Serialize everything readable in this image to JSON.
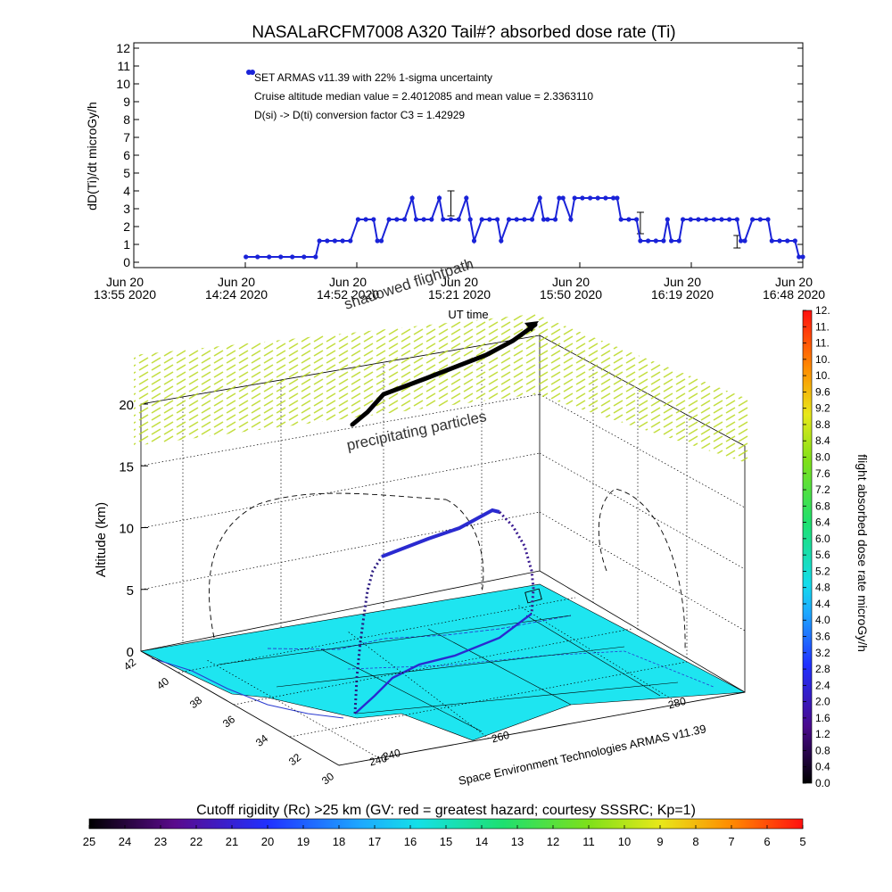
{
  "title": "NASALaRCFM7008  A320 Tail#? absorbed dose rate (Ti)",
  "footer_credit": "Space Environment Technologies ARMAS v11.39",
  "colors": {
    "series": "#1a23d8",
    "rigidity_fill": "#1ee5f0",
    "flight_path": "#2a2ad0",
    "precip": "#a6d81e"
  },
  "chart_data": [
    {
      "id": "dose_rate_timeseries",
      "type": "scatter",
      "ylabel": "dD(Ti)/dt microGy/h",
      "xlabel": "UT time",
      "ylim": [
        0,
        12
      ],
      "ytick_labels": [
        "0",
        "1",
        "2",
        "3",
        "4",
        "5",
        "6",
        "7",
        "8",
        "9",
        "10",
        "11",
        "12"
      ],
      "xlim_minutes": [
        0,
        173
      ],
      "xtick_labels": [
        {
          "line1": "Jun 20",
          "line2": "13:55 2020"
        },
        {
          "line1": "Jun 20",
          "line2": "14:24 2020"
        },
        {
          "line1": "Jun 20",
          "line2": "14:52 2020"
        },
        {
          "line1": "Jun 20",
          "line2": "15:21 2020"
        },
        {
          "line1": "Jun 20",
          "line2": "15:50 2020"
        },
        {
          "line1": "Jun 20",
          "line2": "16:19 2020"
        },
        {
          "line1": "Jun 20",
          "line2": "16:48 2020"
        }
      ],
      "annotations": [
        "SET ARMAS v11.39 with 22% 1-sigma uncertainty",
        "Cruise altitude median value = 2.4012085 and mean value = 2.3363110",
        "D(si) -> D(ti) conversion factor C3 = 1.42929"
      ],
      "series": [
        {
          "values_minutes": [
            [
              29,
              0.3
            ],
            [
              32,
              0.3
            ],
            [
              35,
              0.3
            ],
            [
              38,
              0.3
            ],
            [
              41,
              0.3
            ],
            [
              44,
              0.3
            ],
            [
              47,
              0.3
            ],
            [
              48,
              1.2
            ],
            [
              50,
              1.2
            ],
            [
              52,
              1.2
            ],
            [
              54,
              1.2
            ],
            [
              56,
              1.2
            ],
            [
              58,
              2.4
            ],
            [
              60,
              2.4
            ],
            [
              62,
              2.4
            ],
            [
              63,
              1.2
            ],
            [
              64,
              1.2
            ],
            [
              66,
              2.4
            ],
            [
              68,
              2.4
            ],
            [
              70,
              2.4
            ],
            [
              72,
              3.6
            ],
            [
              73,
              2.4
            ],
            [
              75,
              2.4
            ],
            [
              77,
              2.4
            ],
            [
              79,
              3.6
            ],
            [
              80,
              2.4
            ],
            [
              82,
              2.4
            ],
            [
              84,
              2.4
            ],
            [
              86,
              3.6
            ],
            [
              87,
              2.4
            ],
            [
              88,
              1.2
            ],
            [
              90,
              2.4
            ],
            [
              92,
              2.4
            ],
            [
              94,
              2.4
            ],
            [
              95,
              1.2
            ],
            [
              97,
              2.4
            ],
            [
              99,
              2.4
            ],
            [
              101,
              2.4
            ],
            [
              103,
              2.4
            ],
            [
              105,
              3.6
            ],
            [
              106,
              2.4
            ],
            [
              107,
              2.4
            ],
            [
              109,
              2.4
            ],
            [
              110,
              3.6
            ],
            [
              111,
              3.6
            ],
            [
              113,
              2.4
            ],
            [
              114,
              3.6
            ],
            [
              116,
              3.6
            ],
            [
              118,
              3.6
            ],
            [
              120,
              3.6
            ],
            [
              122,
              3.6
            ],
            [
              124,
              3.6
            ],
            [
              125,
              3.6
            ],
            [
              126,
              2.4
            ],
            [
              128,
              2.4
            ],
            [
              130,
              2.4
            ],
            [
              131,
              1.2
            ],
            [
              133,
              1.2
            ],
            [
              135,
              1.2
            ],
            [
              137,
              1.2
            ],
            [
              138,
              2.4
            ],
            [
              139,
              1.2
            ],
            [
              141,
              1.2
            ],
            [
              142,
              2.4
            ],
            [
              144,
              2.4
            ],
            [
              146,
              2.4
            ],
            [
              148,
              2.4
            ],
            [
              150,
              2.4
            ],
            [
              152,
              2.4
            ],
            [
              154,
              2.4
            ],
            [
              156,
              2.4
            ],
            [
              157,
              1.2
            ],
            [
              158,
              1.2
            ],
            [
              160,
              2.4
            ],
            [
              162,
              2.4
            ],
            [
              164,
              2.4
            ],
            [
              165,
              1.2
            ],
            [
              167,
              1.2
            ],
            [
              169,
              1.2
            ],
            [
              171,
              1.2
            ],
            [
              172,
              0.3
            ],
            [
              173,
              0.3
            ]
          ]
        }
      ],
      "error_bars": [
        {
          "minute": 82,
          "value": 3.3,
          "low": 2.6,
          "high": 4.0
        },
        {
          "minute": 131,
          "value": 2.1,
          "low": 1.6,
          "high": 2.8
        },
        {
          "minute": 156,
          "value": 1.2,
          "low": 0.8,
          "high": 1.5
        }
      ],
      "legend_marker_value": 10.5
    },
    {
      "id": "flight_3d",
      "type": "scatter",
      "zlabel": "Altitude (km)",
      "zlim": [
        0,
        20
      ],
      "ztick_labels": [
        "0",
        "5",
        "10",
        "15",
        "20"
      ],
      "lat_tick_labels": [
        "42",
        "40",
        "38",
        "36",
        "34",
        "32",
        "30"
      ],
      "lon_tick_labels": [
        "240",
        "240",
        "260",
        "280"
      ],
      "annotations": [
        "shadowed flightpath",
        "precipitating particles"
      ],
      "colorbar": {
        "label": "flight absorbed dose rate microGy/h",
        "range": [
          0.0,
          12.0
        ],
        "tick_labels": [
          "0.0",
          "0.4",
          "0.8",
          "1.2",
          "1.6",
          "2.0",
          "2.4",
          "2.8",
          "3.2",
          "3.6",
          "4.0",
          "4.4",
          "4.8",
          "5.2",
          "5.6",
          "6.0",
          "6.4",
          "6.8",
          "7.2",
          "7.6",
          "8.0",
          "8.4",
          "8.8",
          "9.2",
          "9.6",
          "10.",
          "10.",
          "11.",
          "11.",
          "12."
        ]
      }
    },
    {
      "id": "cutoff_rigidity_bar",
      "type": "heatmap",
      "title": "Cutoff rigidity (Rc) >25 km (GV: red = greatest hazard; courtesy SSSRC; Kp=1)",
      "range": [
        25,
        5
      ],
      "tick_labels": [
        "25",
        "24",
        "23",
        "22",
        "21",
        "20",
        "19",
        "18",
        "17",
        "16",
        "15",
        "14",
        "13",
        "12",
        "11",
        "10",
        "9",
        "8",
        "7",
        "6",
        "5"
      ]
    }
  ]
}
